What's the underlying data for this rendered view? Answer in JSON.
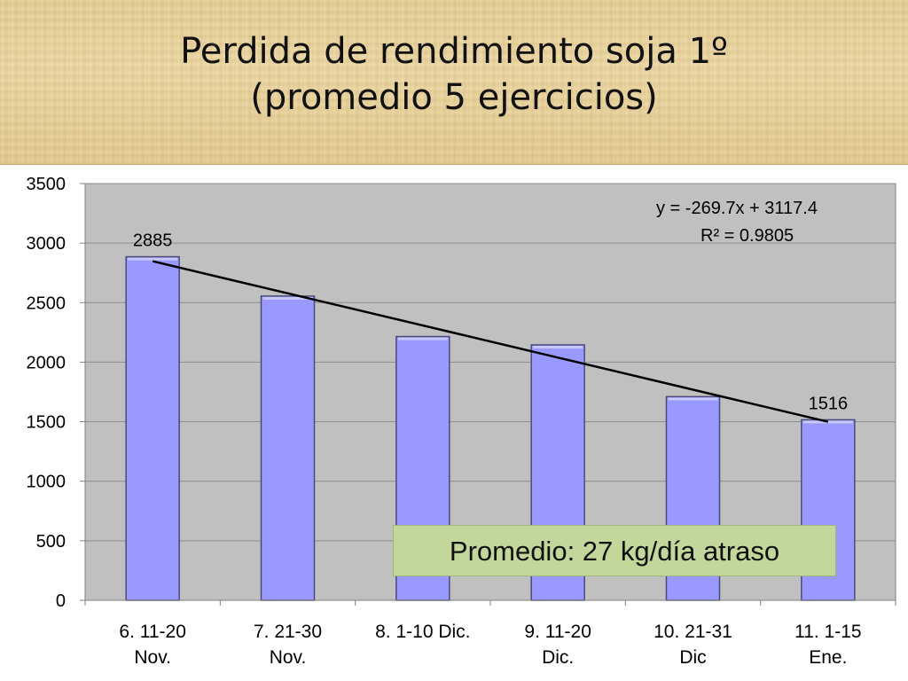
{
  "title": "Perdida de rendimiento soja 1º\n(promedio 5 ejercicios)",
  "chart_data": {
    "type": "bar",
    "categories": [
      [
        "6. 11-20",
        "Nov."
      ],
      [
        "7. 21-30",
        "Nov."
      ],
      [
        "8. 1-10 Dic.",
        ""
      ],
      [
        "9. 11-20",
        "Dic."
      ],
      [
        "10. 21-31",
        "Dic"
      ],
      [
        "11. 1-15",
        "Ene."
      ]
    ],
    "values": [
      2885,
      2555,
      2215,
      2145,
      1710,
      1516
    ],
    "data_labels": [
      "2885",
      "",
      "",
      "",
      "",
      "1516"
    ],
    "ylim": [
      0,
      3500
    ],
    "yticks": [
      0,
      500,
      1000,
      1500,
      2000,
      2500,
      3000,
      3500
    ],
    "grid": true,
    "trendline": {
      "type": "linear",
      "slope": -269.7,
      "intercept": 3117.4
    },
    "equation_line1": "y = -269.7x + 3117.4",
    "equation_line2": "R² = 0.9805",
    "colors": {
      "bar": "#9999ff",
      "plot_bg": "#c0c0c0",
      "trend": "#000000"
    }
  },
  "callout": "Promedio: 27 kg/día atraso"
}
